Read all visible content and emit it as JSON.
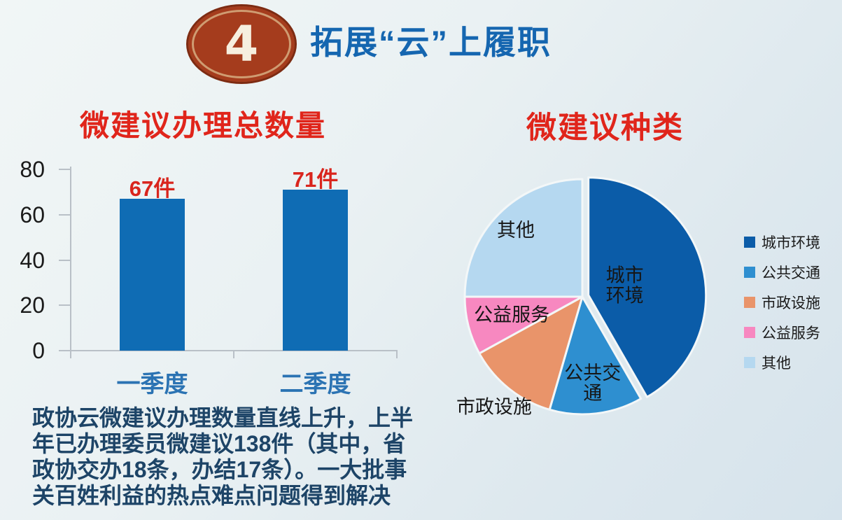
{
  "page": {
    "badge_number": "4",
    "title": "拓展“云”上履职"
  },
  "summary": {
    "lines": [
      "政协云微建议办理数量直线上升，上半",
      "年已办理委员微建议138件（其中，省",
      "政协交办18条，办结17条）。一大批事",
      "关百姓利益的热点难点问题得到解决"
    ]
  },
  "chart_data": [
    {
      "type": "bar",
      "title": "微建议办理总数量",
      "categories": [
        "一季度",
        "二季度"
      ],
      "values": [
        67,
        71
      ],
      "data_labels": [
        "67件",
        "71件"
      ],
      "unit": "件",
      "xlabel": "",
      "ylabel": "",
      "ylim": [
        0,
        80
      ],
      "yticks": [
        0,
        20,
        40,
        60,
        80
      ],
      "grid": false,
      "bar_color": "#0f6cb4",
      "value_label_color": "#d9251d",
      "category_label_color": "#2b73b3"
    },
    {
      "type": "pie",
      "title": "微建议种类",
      "legend_position": "right",
      "slices": [
        {
          "label": "城市环境",
          "percent": 41.7,
          "color": "#0b5ca8",
          "label_lines": [
            "城市",
            "环境"
          ],
          "label_r": 0.32,
          "exploded": true
        },
        {
          "label": "公共交通",
          "percent": 12.8,
          "color": "#2e8fd0",
          "label_lines": [
            "公共交",
            "通"
          ],
          "label_r": 0.74
        },
        {
          "label": "市政设施",
          "percent": 12.5,
          "color": "#e9946a",
          "label_lines": [
            "市政设施"
          ],
          "label_r": 1.2,
          "outside": true
        },
        {
          "label": "公益服务",
          "percent": 8.0,
          "color": "#f788c0",
          "label_lines": [
            "公益服务"
          ],
          "label_r": 0.62
        },
        {
          "label": "其他",
          "percent": 25.0,
          "color": "#b5d8f0",
          "label_lines": [
            "其他"
          ],
          "label_r": 0.8
        }
      ],
      "legend": [
        "城市环境",
        "公共交通",
        "市政设施",
        "公益服务",
        "其他"
      ],
      "slice_label_color": "#161616"
    }
  ]
}
